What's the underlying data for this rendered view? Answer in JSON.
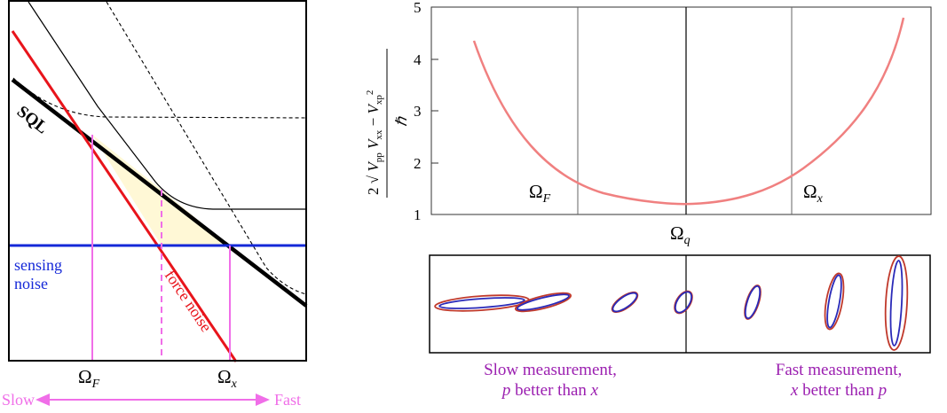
{
  "left_panel": {
    "sql_label": "SQL",
    "sensing_noise_label_line1": "sensing",
    "sensing_noise_label_line2": "noise",
    "force_noise_label": "force noise",
    "omega_f_label": "Ω_F",
    "omega_x_label": "Ω_x",
    "slow_label": "Slow",
    "fast_label": "Fast",
    "colors": {
      "force_noise": "#e8141b",
      "sensing_noise": "#1428d8",
      "sql": "#000000",
      "markers": "#f06ee8",
      "shaded_region": "#fff8d6"
    }
  },
  "top_chart": {
    "ylabel_numerator": "2 √(V_pp V_xx − V_xp²)",
    "ylabel_denominator": "ℏ",
    "xlabel": "Ω_q",
    "y_ticks": [
      "1",
      "2",
      "3",
      "4",
      "5"
    ],
    "ylim": [
      1,
      5
    ],
    "markers": [
      "Ω_F",
      "Ω_x"
    ],
    "curve_color": "#f08080"
  },
  "bottom_panel": {
    "slow_caption_line1": "Slow measurement,",
    "slow_caption_line2": "p better than x",
    "fast_caption_line1": "Fast measurement,",
    "fast_caption_line2": "x better than p",
    "caption_color": "#9b1fb0",
    "ellipse_outer_color": "#c0392b",
    "ellipse_inner_color": "#2a2ab8"
  }
}
